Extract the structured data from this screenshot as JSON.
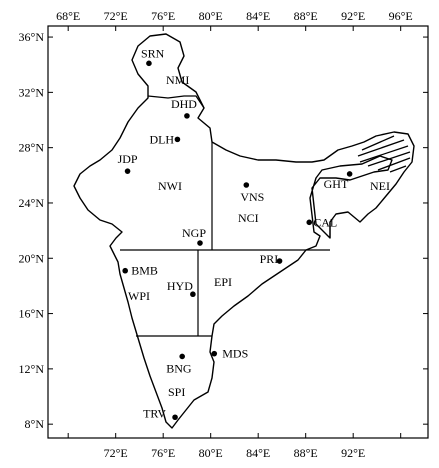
{
  "map": {
    "lon_ticks": [
      "68°E",
      "72°E",
      "76°E",
      "80°E",
      "84°E",
      "88°E",
      "92°E",
      "96°E"
    ],
    "lat_ticks": [
      "36°N",
      "32°N",
      "28°N",
      "24°N",
      "20°N",
      "16°N",
      "12°N",
      "8°N"
    ],
    "stations": [
      {
        "code": "SRN",
        "lon": 74.8,
        "lat": 34.1
      },
      {
        "code": "DHD",
        "lon": 78.0,
        "lat": 30.3
      },
      {
        "code": "DLH",
        "lon": 77.2,
        "lat": 28.6
      },
      {
        "code": "JDP",
        "lon": 73.0,
        "lat": 26.3
      },
      {
        "code": "VNS",
        "lon": 83.0,
        "lat": 25.3
      },
      {
        "code": "GHT",
        "lon": 91.7,
        "lat": 26.1
      },
      {
        "code": "CAL",
        "lon": 88.3,
        "lat": 22.6
      },
      {
        "code": "NGP",
        "lon": 79.1,
        "lat": 21.1
      },
      {
        "code": "BMB",
        "lon": 72.8,
        "lat": 19.1
      },
      {
        "code": "PRI",
        "lon": 85.8,
        "lat": 19.8
      },
      {
        "code": "HYD",
        "lon": 78.5,
        "lat": 17.4
      },
      {
        "code": "BNG",
        "lon": 77.6,
        "lat": 12.9
      },
      {
        "code": "MDS",
        "lon": 80.3,
        "lat": 13.1
      },
      {
        "code": "TRV",
        "lon": 77.0,
        "lat": 8.5
      }
    ],
    "regions": [
      "NMI",
      "NWI",
      "NCI",
      "NEI",
      "WPI",
      "EPI",
      "SPI"
    ],
    "colors": {
      "ink": "#000000",
      "background": "#ffffff"
    }
  }
}
